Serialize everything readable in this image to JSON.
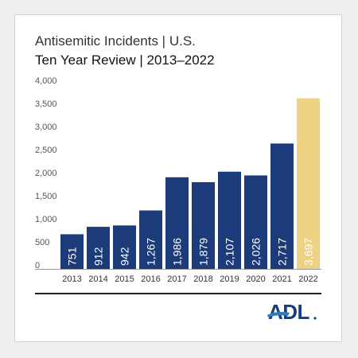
{
  "header": {
    "title": "Antisemitic Incidents | U.S.",
    "subtitle": "Ten Year Review | 2013–2022"
  },
  "logo": {
    "text": "ADL",
    "icon": "adl-logo"
  },
  "colors": {
    "bar_primary": "#1b3b7a",
    "bar_highlight": "#ecd282",
    "label_on_primary": "#ffffff",
    "label_on_highlight": "#ffffff",
    "axis_text": "#555555",
    "baseline": "#999999",
    "card_background": "#ffffff",
    "page_background": "#efefef",
    "logo_blue": "#1b3b7a",
    "logo_accent": "#2a7fc0"
  },
  "chart_data": {
    "type": "bar",
    "title": "",
    "xlabel": "",
    "ylabel": "",
    "categories": [
      "2013",
      "2014",
      "2015",
      "2016",
      "2017",
      "2018",
      "2019",
      "2020",
      "2021",
      "2022"
    ],
    "values": [
      751,
      912,
      942,
      1267,
      1986,
      1879,
      2107,
      2026,
      2717,
      3697
    ],
    "value_labels": [
      "751",
      "912",
      "942",
      "1,267",
      "1,986",
      "1,879",
      "2,107",
      "2,026",
      "2,717",
      "3,697"
    ],
    "y_ticks": [
      0,
      500,
      1000,
      1500,
      2000,
      2500,
      3000,
      3500,
      4000
    ],
    "y_tick_labels": [
      "0",
      "500",
      "1,000",
      "1,500",
      "2,000",
      "2,500",
      "3,000",
      "3,500",
      "4,000"
    ],
    "ylim": [
      0,
      4000
    ],
    "grid": false,
    "legend": "none",
    "highlight_category": "2022",
    "value_label_orientation": "vertical, inside bar base"
  }
}
